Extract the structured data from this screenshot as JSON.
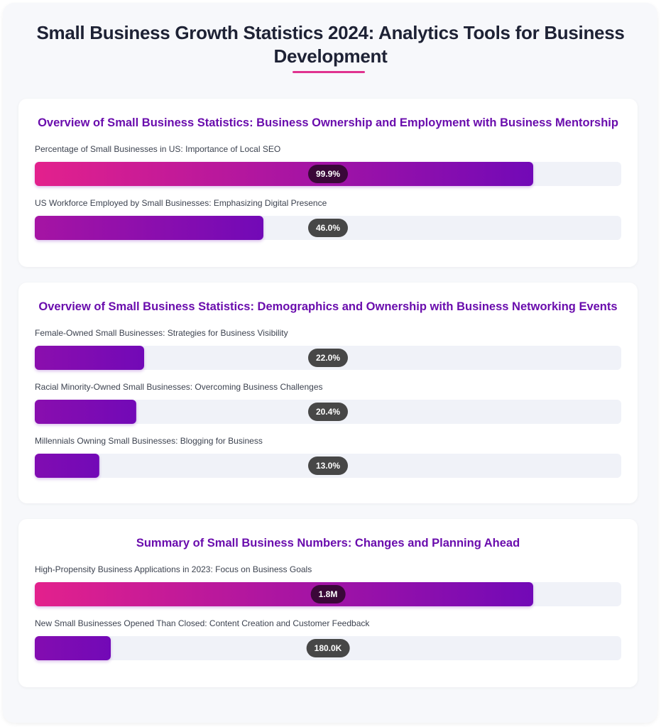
{
  "title": "Small Business Growth Statistics 2024: Analytics Tools for Business Development",
  "colors": {
    "gradient_start": "#f72585",
    "gradient_end": "#7209b7",
    "heading": "#6a0dad"
  },
  "chart_data": {
    "type": "bar",
    "orientation": "horizontal",
    "sections": [
      {
        "title": "Overview of Small Business Statistics: Business Ownership and Employment with Business Mentorship",
        "items": [
          {
            "label": "Percentage of Small Businesses in US: Importance of Local SEO",
            "value": "99.9%",
            "fill_percent": 85
          },
          {
            "label": "US Workforce Employed by Small Businesses: Emphasizing Digital Presence",
            "value": "46.0%",
            "fill_percent": 39
          }
        ]
      },
      {
        "title": "Overview of Small Business Statistics: Demographics and Ownership with Business Networking Events",
        "items": [
          {
            "label": "Female-Owned Small Businesses: Strategies for Business Visibility",
            "value": "22.0%",
            "fill_percent": 18.7
          },
          {
            "label": "Racial Minority-Owned Small Businesses: Overcoming Business Challenges",
            "value": "20.4%",
            "fill_percent": 17.3
          },
          {
            "label": "Millennials Owning Small Businesses: Blogging for Business",
            "value": "13.0%",
            "fill_percent": 11
          }
        ]
      },
      {
        "title": "Summary of Small Business Numbers: Changes and Planning Ahead",
        "items": [
          {
            "label": "High-Propensity Business Applications in 2023: Focus on Business Goals",
            "value": "1.8M",
            "fill_percent": 85
          },
          {
            "label": "New Small Businesses Opened Than Closed: Content Creation and Customer Feedback",
            "value": "180.0K",
            "fill_percent": 13
          }
        ]
      }
    ]
  }
}
